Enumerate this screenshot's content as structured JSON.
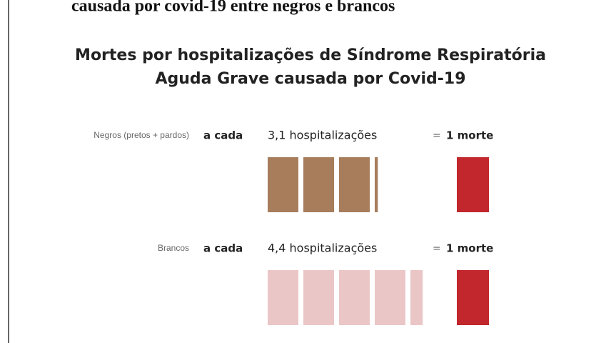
{
  "header": {
    "cutoff_text": "causada por covid-19 entre negros e brancos"
  },
  "chart_data": {
    "type": "pictogram",
    "title": [
      "Mortes por hospitalizações de Síndrome Respiratória",
      "Aguda Grave causada por Covid-19"
    ],
    "categories": [
      "Negros (pretos + pardos)",
      "Brancos"
    ],
    "connector": "a cada",
    "values": [
      3.1,
      4.4
    ],
    "value_labels": [
      "3,1 hospitalizações",
      "4,4 hospitalizações"
    ],
    "equals": "=",
    "result": "1 morte",
    "colors": [
      "#a77d5c",
      "#ebc6c7"
    ],
    "death_color": "#c1272d"
  }
}
